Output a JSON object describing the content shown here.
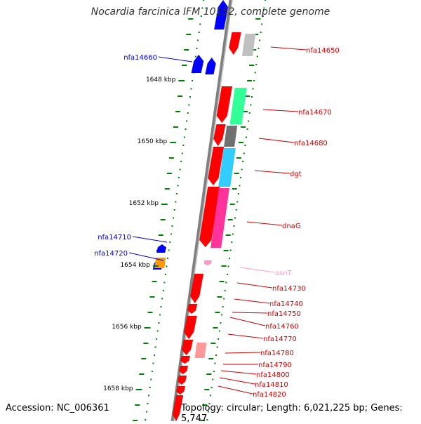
{
  "title": "Nocardia farcinica IFM 10152, complete genome",
  "footer": {
    "accession": "Accession: NC_006361",
    "summary": "Topology: circular; Length: 6,021,225 bp; Genes: 5,747"
  },
  "scale_labels": [
    "1648 kbp",
    "1650 kbp",
    "1652 kbp",
    "1654 kbp",
    "1656 kbp",
    "1658 kbp"
  ],
  "colors": {
    "plus_strand": "#ff0000",
    "minus_strand": "#0000ff",
    "rna": "#ff99cc",
    "backbone": "#808080",
    "tick": "#008000",
    "dot": "#008000",
    "label_plus": "#cc0000",
    "label_minus": "#0000cc",
    "label_rna": "#ff99cc"
  },
  "gene_labels": [
    {
      "text": "nfa14650",
      "color": "#cc0000"
    },
    {
      "text": "nfa14660",
      "color": "#0000cc"
    },
    {
      "text": "nfa14670",
      "color": "#cc0000"
    },
    {
      "text": "nfa14680",
      "color": "#cc0000"
    },
    {
      "text": "dgt",
      "color": "#cc0000"
    },
    {
      "text": "dnaG",
      "color": "#cc0000"
    },
    {
      "text": "nfa14710",
      "color": "#0000cc"
    },
    {
      "text": "nfa14720",
      "color": "#0000cc"
    },
    {
      "text": "asnT",
      "color": "#ff99cc"
    },
    {
      "text": "nfa14730",
      "color": "#cc0000"
    },
    {
      "text": "nfa14740",
      "color": "#cc0000"
    },
    {
      "text": "nfa14750",
      "color": "#cc0000"
    },
    {
      "text": "nfa14760",
      "color": "#cc0000"
    },
    {
      "text": "nfa14770",
      "color": "#cc0000"
    },
    {
      "text": "nfa14780",
      "color": "#cc0000"
    },
    {
      "text": "nfa14790",
      "color": "#cc0000"
    },
    {
      "text": "nfa14800",
      "color": "#cc0000"
    },
    {
      "text": "nfa14810",
      "color": "#cc0000"
    },
    {
      "text": "nfa14820",
      "color": "#cc0000"
    }
  ],
  "cog_colors": [
    "#c0c0c0",
    "#33ff99",
    "#707070",
    "#33ccff",
    "#ff3399",
    "#ff9900",
    "#ff9999"
  ]
}
